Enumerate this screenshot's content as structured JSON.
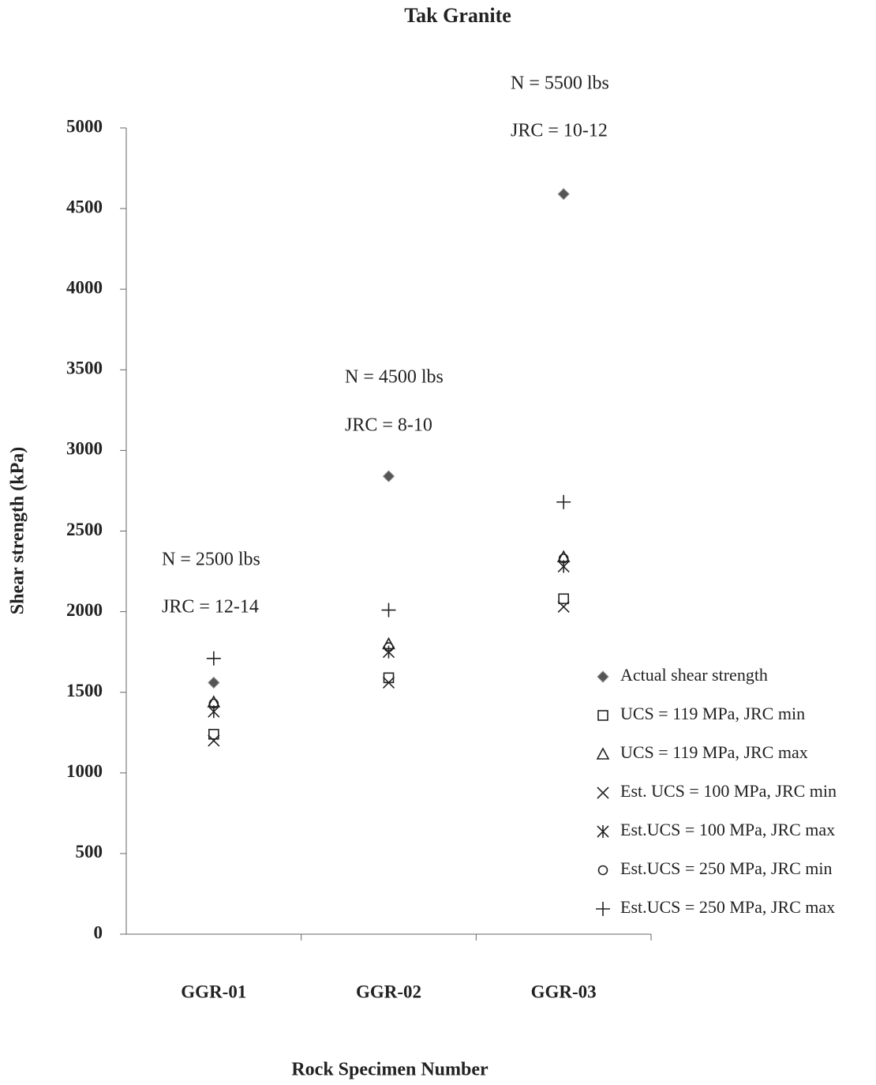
{
  "chart_data": {
    "type": "scatter",
    "title": "Tak Granite",
    "x_label": "Rock Specimen Number",
    "y_label": "Shear strength (kPa)",
    "categories": [
      "GGR-01",
      "GGR-02",
      "GGR-03"
    ],
    "ylim": [
      0,
      5000
    ],
    "yticks": [
      0,
      500,
      1000,
      1500,
      2000,
      2500,
      3000,
      3500,
      4000,
      4500,
      5000
    ],
    "annotations": [
      "N =  2500 lbs",
      "JRC = 12-14",
      "N =  4500 lbs",
      "JRC = 8-10",
      "N =  5500 lbs",
      "JRC = 10-12"
    ],
    "legend": "right",
    "series": [
      {
        "name": "Actual shear strength",
        "color": "#555555",
        "marker": "diamond",
        "values": [
          1560,
          2840,
          4590
        ]
      },
      {
        "name": "UCS = 119 MPa, JRC min",
        "color": "#222222",
        "marker": "square",
        "values": [
          1240,
          1590,
          2080
        ]
      },
      {
        "name": "UCS = 119 MPa, JRC max",
        "color": "#222222",
        "marker": "triangle",
        "values": [
          1440,
          1800,
          2340
        ]
      },
      {
        "name": "Est. UCS = 100 MPa, JRC min",
        "color": "#222222",
        "marker": "x",
        "values": [
          1200,
          1560,
          2030
        ]
      },
      {
        "name": "Est.UCS = 100 MPa, JRC max",
        "color": "#222222",
        "marker": "asterisk",
        "values": [
          1380,
          1750,
          2280
        ]
      },
      {
        "name": "Est.UCS = 250 MPa, JRC min",
        "color": "#222222",
        "marker": "circle",
        "values": [
          1430,
          1780,
          2330
        ]
      },
      {
        "name": "Est.UCS = 250 MPa, JRC max",
        "color": "#222222",
        "marker": "plus",
        "values": [
          1710,
          2010,
          2680
        ]
      }
    ]
  }
}
